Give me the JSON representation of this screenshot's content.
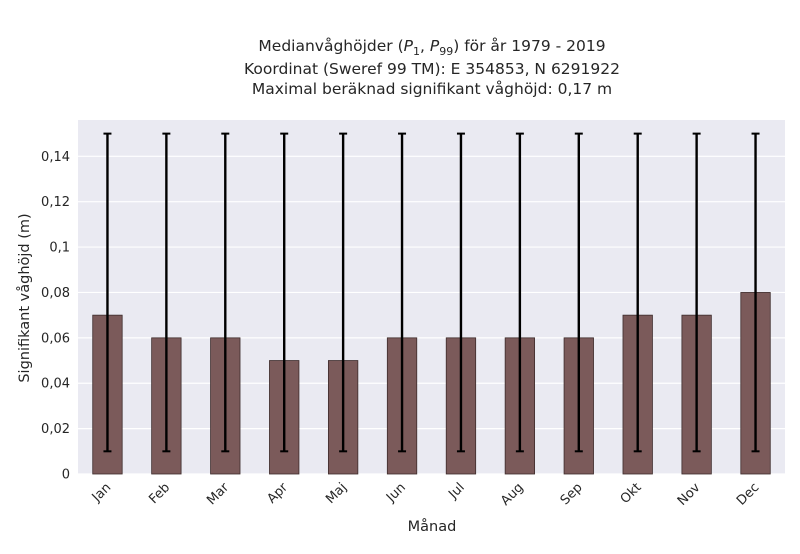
{
  "chart_data": {
    "type": "bar",
    "title_lines": [
      "Medianvåghöjder (P1, P99) för år 1979 - 2019",
      "Koordinat (Sweref 99 TM): E 354853, N 6291922",
      "Maximal beräknad signifikant våghöjd: 0,17 m"
    ],
    "xlabel": "Månad",
    "ylabel": "Signifikant våghöjd (m)",
    "categories": [
      "Jan",
      "Feb",
      "Mar",
      "Apr",
      "Maj",
      "Jun",
      "Jul",
      "Aug",
      "Sep",
      "Okt",
      "Nov",
      "Dec"
    ],
    "series": [
      {
        "values": [
          0.07,
          0.06,
          0.06,
          0.05,
          0.05,
          0.06,
          0.06,
          0.06,
          0.06,
          0.07,
          0.07,
          0.08
        ],
        "p1": [
          0.01,
          0.01,
          0.01,
          0.01,
          0.01,
          0.01,
          0.01,
          0.01,
          0.01,
          0.01,
          0.01,
          0.01
        ],
        "p99": [
          0.15,
          0.15,
          0.15,
          0.15,
          0.15,
          0.15,
          0.15,
          0.15,
          0.15,
          0.15,
          0.15,
          0.15
        ]
      }
    ],
    "ylim": [
      0,
      0.156
    ],
    "yticks": [
      0,
      0.02,
      0.04,
      0.06,
      0.08,
      0.1,
      0.12,
      0.14
    ],
    "ytick_labels": [
      "0",
      "0,02",
      "0,04",
      "0,06",
      "0,08",
      "0,1",
      "0,12",
      "0,14"
    ],
    "grid": true,
    "colors": {
      "bar": "#7b5a5a",
      "bar_edge": "#3d2b2b",
      "errorbar": "#000000",
      "plot_background": "#eaeaf2",
      "grid": "#ffffff"
    }
  }
}
